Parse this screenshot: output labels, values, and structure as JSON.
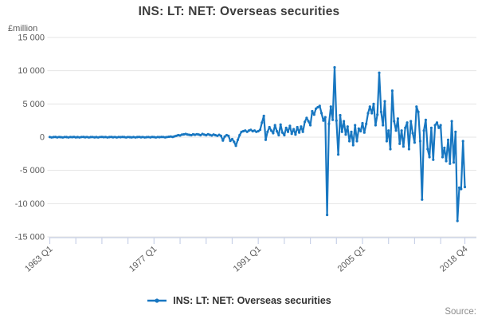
{
  "title": "INS: LT: NET: Overseas securities",
  "y_axis": {
    "unit_label": "£million",
    "tick_values": [
      15000,
      10000,
      5000,
      0,
      -5000,
      -10000,
      -15000
    ],
    "tick_labels": [
      "15 000",
      "10 000",
      "5 000",
      "0",
      "-5 000",
      "-10 000",
      "-15 000"
    ]
  },
  "x_axis": {
    "tick_indices": [
      0,
      14,
      28,
      42,
      56,
      70,
      84,
      98,
      112,
      126,
      140,
      154,
      168,
      182,
      196,
      210,
      223
    ],
    "labels": [
      {
        "index": 0,
        "text": "1963 Q1"
      },
      {
        "index": 56,
        "text": "1977 Q1"
      },
      {
        "index": 112,
        "text": "1991 Q1"
      },
      {
        "index": 168,
        "text": "2005 Q1"
      },
      {
        "index": 223,
        "text": "2018 Q4"
      }
    ]
  },
  "legend": {
    "label": "INS: LT: NET: Overseas securities"
  },
  "source": {
    "label": "Source:"
  },
  "colors": {
    "line": "#1877c1",
    "grid": "#e4e4e4",
    "axis": "#c9d2e8",
    "tick_text": "#5a5a5a",
    "title_text": "#3d3d3d"
  },
  "chart_data": {
    "type": "line",
    "title": "INS: LT: NET: Overseas securities",
    "ylabel": "£million",
    "ylim": [
      -15000,
      15000
    ],
    "grid": "horizontal",
    "legend_position": "bottom",
    "frequency": "quarterly",
    "start": "1963 Q1",
    "end": "2018 Q4",
    "x_tick_labels": [
      "1963 Q1",
      "1977 Q1",
      "1991 Q1",
      "2005 Q1",
      "2018 Q4"
    ],
    "series": [
      {
        "name": "INS: LT: NET: Overseas securities",
        "values": [
          20,
          -30,
          10,
          40,
          -20,
          30,
          0,
          -40,
          30,
          10,
          -30,
          20,
          0,
          40,
          -20,
          10,
          -30,
          20,
          40,
          -10,
          30,
          -40,
          10,
          30,
          -20,
          10,
          -40,
          20,
          40,
          0,
          30,
          -30,
          10,
          40,
          -10,
          30,
          -30,
          20,
          0,
          40,
          10,
          -40,
          30,
          0,
          -20,
          30,
          -30,
          10,
          40,
          -10,
          20,
          -30,
          0,
          30,
          -20,
          40,
          10,
          -30,
          30,
          0,
          40,
          20,
          -20,
          30,
          60,
          100,
          40,
          120,
          200,
          300,
          250,
          380,
          420,
          480,
          400,
          350,
          300,
          420,
          360,
          450,
          400,
          300,
          480,
          380,
          300,
          450,
          350,
          250,
          400,
          300,
          200,
          350,
          200,
          -500,
          100,
          300,
          200,
          -550,
          -300,
          -700,
          -1300,
          -400,
          300,
          800,
          900,
          1000,
          800,
          1000,
          1100,
          900,
          1000,
          800,
          900,
          1100,
          2200,
          3200,
          -400,
          800,
          1500,
          1000,
          600,
          1800,
          900,
          300,
          1900,
          700,
          300,
          1400,
          800,
          1700,
          500,
          1200,
          400,
          1500,
          700,
          1600,
          800,
          2300,
          2900,
          2400,
          1800,
          3900,
          3400,
          4300,
          4500,
          4700,
          3600,
          2500,
          3000,
          -11700,
          2000,
          4600,
          2600,
          10500,
          2500,
          -2600,
          3300,
          800,
          2400,
          400,
          1600,
          -600,
          800,
          -1200,
          1800,
          -600,
          1300,
          900,
          2100,
          700,
          2000,
          3600,
          4600,
          3600,
          5000,
          1800,
          3400,
          9700,
          3800,
          1800,
          5400,
          -600,
          1000,
          -1800,
          7000,
          2400,
          1000,
          2800,
          -1000,
          1000,
          -1400,
          1400,
          2200,
          -1800,
          2400,
          600,
          -800,
          4600,
          3800,
          -600,
          -9400,
          1000,
          2600,
          -1800,
          -3000,
          1400,
          -3400,
          1800,
          2200,
          1400,
          1800,
          -3000,
          -1600,
          -3600,
          -400,
          -4000,
          2400,
          -3800,
          800,
          -12600,
          -7600,
          -7800,
          -600,
          -7500
        ]
      }
    ]
  }
}
